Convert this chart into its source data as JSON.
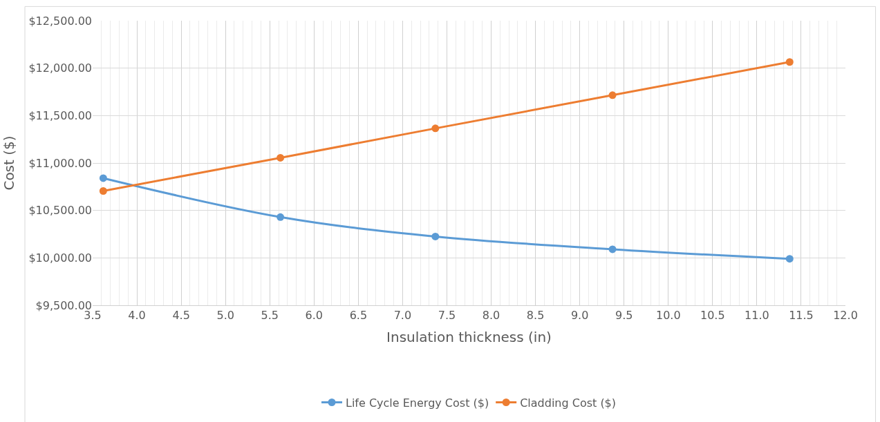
{
  "chart_data": {
    "type": "line",
    "xlabel": "Insulation thickness (in)",
    "ylabel": "Cost ($)",
    "x": [
      3.62,
      5.62,
      7.37,
      9.37,
      11.37
    ],
    "series": [
      {
        "name": "Life Cycle Energy Cost ($)",
        "color": "#5b9bd5",
        "values": [
          10840,
          10430,
          10225,
          10090,
          9990
        ]
      },
      {
        "name": "Cladding Cost ($)",
        "color": "#ed7d31",
        "values": [
          10705,
          11055,
          11365,
          11715,
          12065
        ]
      }
    ],
    "xlim": [
      3.5,
      12.0
    ],
    "xticks": [
      3.5,
      {
        "value": 4,
        "label": "4.0"
      },
      4.5,
      {
        "value": 5,
        "label": "5.0"
      },
      5.5,
      {
        "value": 6,
        "label": "6.0"
      },
      6.5,
      {
        "value": 7,
        "label": "7.0"
      },
      7.5,
      {
        "value": 8,
        "label": "8.0"
      },
      8.5,
      {
        "value": 9,
        "label": "9.0"
      },
      9.5,
      {
        "value": 10,
        "label": "10.0"
      },
      10.5,
      {
        "value": 11,
        "label": "11.0"
      },
      11.5,
      {
        "value": 12,
        "label": "12.0"
      }
    ],
    "ylim": [
      9500,
      12500
    ],
    "yticks": [
      {
        "value": 9500,
        "label": "$9,500.00"
      },
      {
        "value": 10000,
        "label": "$10,000.00"
      },
      {
        "value": 10500,
        "label": "$10,500.00"
      },
      {
        "value": 11000,
        "label": "$11,000.00"
      },
      {
        "value": 11500,
        "label": "$11,500.00"
      },
      {
        "value": 12000,
        "label": "$12,000.00"
      },
      {
        "value": 12500,
        "label": "$12,500.00"
      }
    ],
    "grid": true,
    "legend": "bottom",
    "marker": "circle",
    "line_style": "solid"
  }
}
